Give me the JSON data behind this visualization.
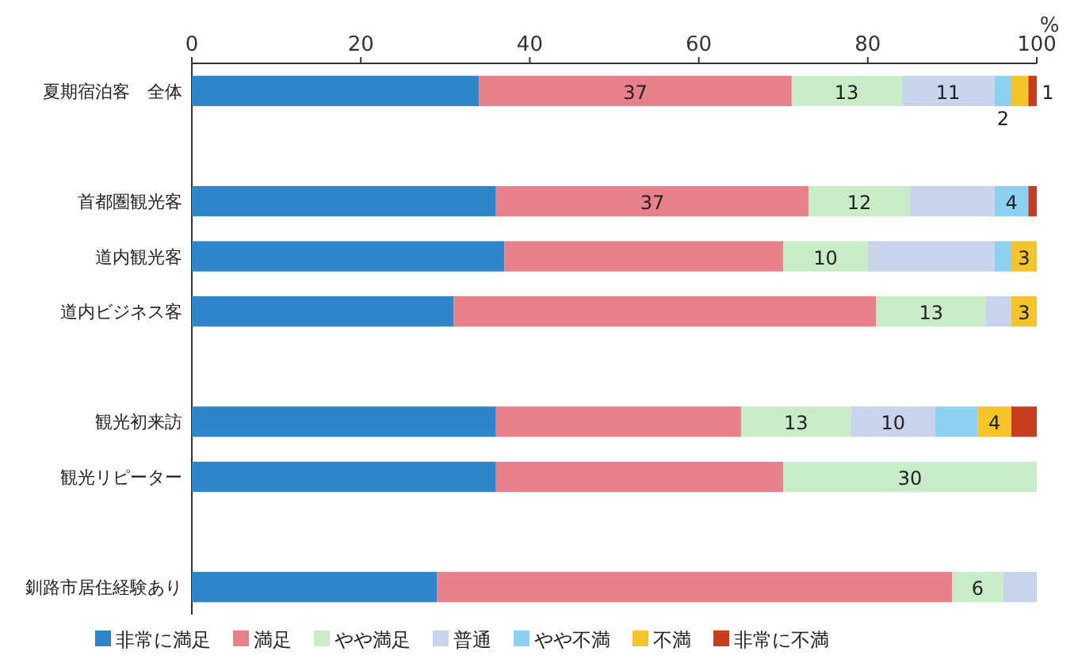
{
  "chart_data": {
    "type": "bar",
    "orientation": "horizontal",
    "stacked": true,
    "xlabel": "%",
    "xlim": [
      0,
      100
    ],
    "xticks": [
      0,
      20,
      40,
      60,
      80,
      100
    ],
    "grid": false,
    "legend": "bottom",
    "categories": [
      "夏期宿泊客　全体",
      null,
      "首都圏観光客",
      "道内観光客",
      "道内ビジネス客",
      null,
      "観光初来訪",
      "観光リピーター",
      null,
      "釧路市居住経験あり"
    ],
    "series": [
      {
        "name": "非常に満足",
        "color": "#2e86c8",
        "values": [
          34,
          null,
          36,
          37,
          31,
          null,
          36,
          36,
          null,
          29
        ],
        "value_labels": [
          null,
          null,
          null,
          null,
          null,
          null,
          null,
          null,
          null,
          null
        ]
      },
      {
        "name": "満足",
        "color": "#e8808c",
        "values": [
          37,
          null,
          37,
          33,
          50,
          null,
          29,
          34,
          null,
          61
        ],
        "value_labels": [
          "37",
          null,
          "37",
          null,
          null,
          null,
          null,
          null,
          null,
          null
        ]
      },
      {
        "name": "やや満足",
        "color": "#c8ecc8",
        "values": [
          13,
          null,
          12,
          10,
          13,
          null,
          13,
          30,
          null,
          6
        ],
        "value_labels": [
          "13",
          null,
          "12",
          "10",
          "13",
          null,
          "13",
          "30",
          null,
          "6"
        ]
      },
      {
        "name": "普通",
        "color": "#c8d4ec",
        "values": [
          11,
          null,
          10,
          15,
          3,
          null,
          10,
          0,
          null,
          4
        ],
        "value_labels": [
          "11",
          null,
          null,
          null,
          null,
          null,
          "10",
          null,
          null,
          null
        ]
      },
      {
        "name": "やや不満",
        "color": "#8cd2f0",
        "values": [
          2,
          null,
          4,
          2,
          0,
          null,
          5,
          0,
          null,
          0
        ],
        "value_labels": [
          "2",
          null,
          "4",
          null,
          null,
          null,
          null,
          null,
          null,
          null
        ]
      },
      {
        "name": "不満",
        "color": "#f5c32a",
        "values": [
          2,
          null,
          0,
          3,
          3,
          null,
          4,
          0,
          null,
          0
        ],
        "value_labels": [
          null,
          null,
          null,
          "3",
          "3",
          null,
          "4",
          null,
          null,
          null
        ]
      },
      {
        "name": "非常に不満",
        "color": "#c83c20",
        "values": [
          1,
          null,
          1,
          0,
          0,
          null,
          3,
          0,
          null,
          0
        ],
        "value_labels": [
          "1",
          null,
          null,
          null,
          null,
          null,
          null,
          null,
          null,
          null
        ]
      }
    ]
  }
}
